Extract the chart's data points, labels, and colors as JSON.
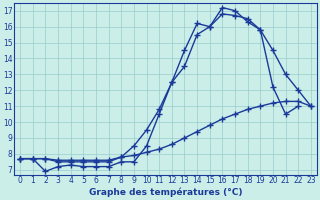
{
  "background_color": "#cceee8",
  "grid_color": "#99cccc",
  "line_color": "#1a3a9a",
  "xlim_min": -0.5,
  "xlim_max": 23.5,
  "ylim_min": 6.7,
  "ylim_max": 17.5,
  "xticks": [
    0,
    1,
    2,
    3,
    4,
    5,
    6,
    7,
    8,
    9,
    10,
    11,
    12,
    13,
    14,
    15,
    16,
    17,
    18,
    19,
    20,
    21,
    22,
    23
  ],
  "yticks": [
    7,
    8,
    9,
    10,
    11,
    12,
    13,
    14,
    15,
    16,
    17
  ],
  "xlabel": "Graphe des températures (°C)",
  "lines": [
    {
      "x": [
        0,
        1,
        2,
        3,
        4,
        5,
        6,
        7,
        8,
        9,
        10,
        11,
        12,
        13,
        14,
        15,
        16,
        17,
        18,
        19,
        20,
        21,
        22
      ],
      "y": [
        7.7,
        7.7,
        6.9,
        7.2,
        7.3,
        7.2,
        7.2,
        7.2,
        7.5,
        7.5,
        8.5,
        10.5,
        12.5,
        14.5,
        16.2,
        16.0,
        17.2,
        17.0,
        16.3,
        15.8,
        12.2,
        10.5,
        11.0
      ]
    },
    {
      "x": [
        0,
        1,
        2,
        3,
        4,
        5,
        6,
        7,
        8,
        9,
        10,
        11,
        12,
        13,
        14,
        15,
        16,
        17,
        18,
        19,
        20,
        21,
        22,
        23
      ],
      "y": [
        7.7,
        7.7,
        7.7,
        7.5,
        7.5,
        7.5,
        7.5,
        7.5,
        7.8,
        8.5,
        9.5,
        10.8,
        12.5,
        13.5,
        15.5,
        16.0,
        16.8,
        16.7,
        16.5,
        15.8,
        14.5,
        13.0,
        12.0,
        11.0
      ]
    },
    {
      "x": [
        0,
        1,
        2,
        3,
        4,
        5,
        6,
        7,
        8,
        9,
        10,
        11,
        12,
        13,
        14,
        15,
        16,
        17,
        18,
        19,
        20,
        21,
        22,
        23
      ],
      "y": [
        7.7,
        7.7,
        7.7,
        7.6,
        7.6,
        7.6,
        7.6,
        7.6,
        7.8,
        7.9,
        8.1,
        8.3,
        8.6,
        9.0,
        9.4,
        9.8,
        10.2,
        10.5,
        10.8,
        11.0,
        11.2,
        11.3,
        11.3,
        11.0
      ]
    }
  ],
  "tick_fontsize": 5.5,
  "xlabel_fontsize": 6.5,
  "xlabel_fontweight": "bold",
  "linewidth": 1.0,
  "markersize": 4.0
}
